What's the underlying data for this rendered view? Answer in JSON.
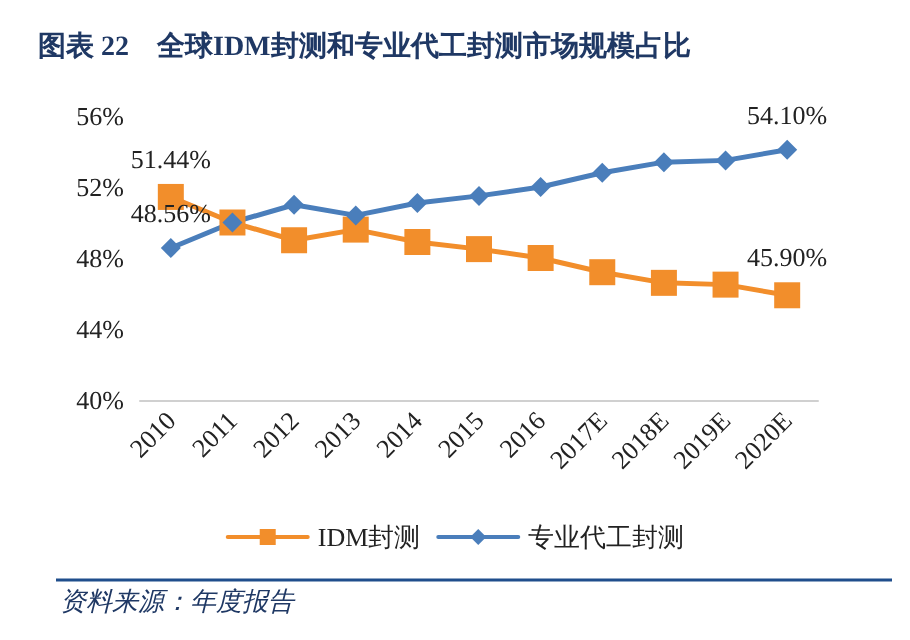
{
  "chart_data": {
    "type": "line",
    "title": "图表 22　全球IDM封测和专业代工封测市场规模占比",
    "categories": [
      "2010",
      "2011",
      "2012",
      "2013",
      "2014",
      "2015",
      "2016",
      "2017E",
      "2018E",
      "2019E",
      "2020E"
    ],
    "series": [
      {
        "name": "IDM封测",
        "color": "#f28e2b",
        "marker": "square",
        "values": [
          51.44,
          50.0,
          49.0,
          49.6,
          48.9,
          48.5,
          48.0,
          47.2,
          46.6,
          46.5,
          45.9
        ],
        "value_labels": [
          "51.44%",
          null,
          null,
          null,
          null,
          null,
          null,
          null,
          null,
          null,
          "45.90%"
        ]
      },
      {
        "name": "专业代工封测",
        "color": "#4a7ebb",
        "marker": "diamond",
        "values": [
          48.56,
          50.0,
          51.0,
          50.4,
          51.1,
          51.5,
          52.0,
          52.8,
          53.4,
          53.5,
          54.1
        ],
        "value_labels": [
          "48.56%",
          null,
          null,
          null,
          null,
          null,
          null,
          null,
          null,
          null,
          "54.10%"
        ]
      }
    ],
    "ylim": [
      40,
      56
    ],
    "yticks": [
      {
        "value": 40,
        "label": "40%"
      },
      {
        "value": 44,
        "label": "44%"
      },
      {
        "value": 48,
        "label": "48%"
      },
      {
        "value": 52,
        "label": "52%"
      },
      {
        "value": 56,
        "label": "56%"
      }
    ],
    "grid": false,
    "legend": "bottom",
    "line_style": "solid",
    "annotations": [
      "资料来源：年度报告"
    ]
  }
}
